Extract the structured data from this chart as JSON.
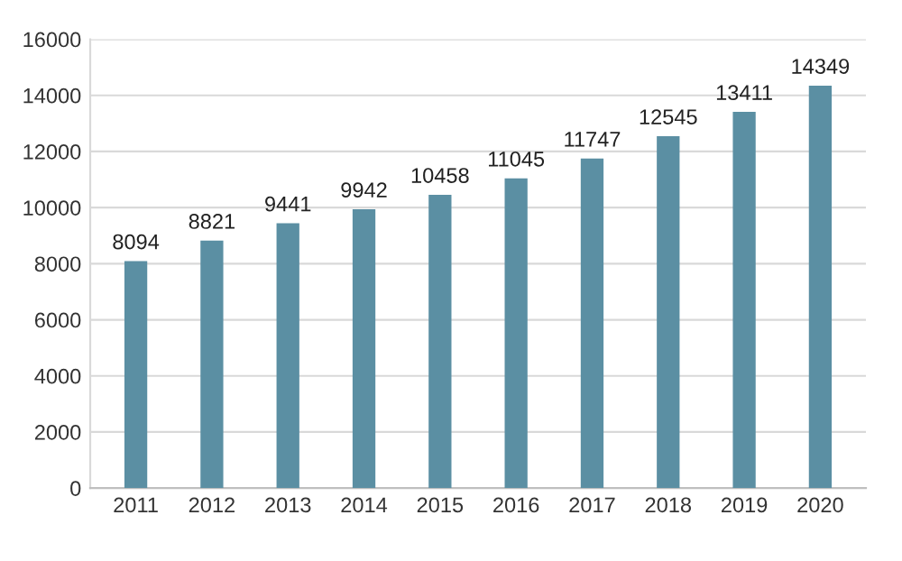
{
  "chart_data": {
    "type": "bar",
    "categories": [
      "2011",
      "2012",
      "2013",
      "2014",
      "2015",
      "2016",
      "2017",
      "2018",
      "2019",
      "2020"
    ],
    "values": [
      8094,
      8821,
      9441,
      9942,
      10458,
      11045,
      11747,
      12545,
      13411,
      14349
    ],
    "color": "#5b8fa3",
    "ylim": [
      0,
      16000
    ],
    "yticks": [
      0,
      2000,
      4000,
      6000,
      8000,
      10000,
      12000,
      14000,
      16000
    ],
    "grid": "y",
    "data_labels": true
  }
}
